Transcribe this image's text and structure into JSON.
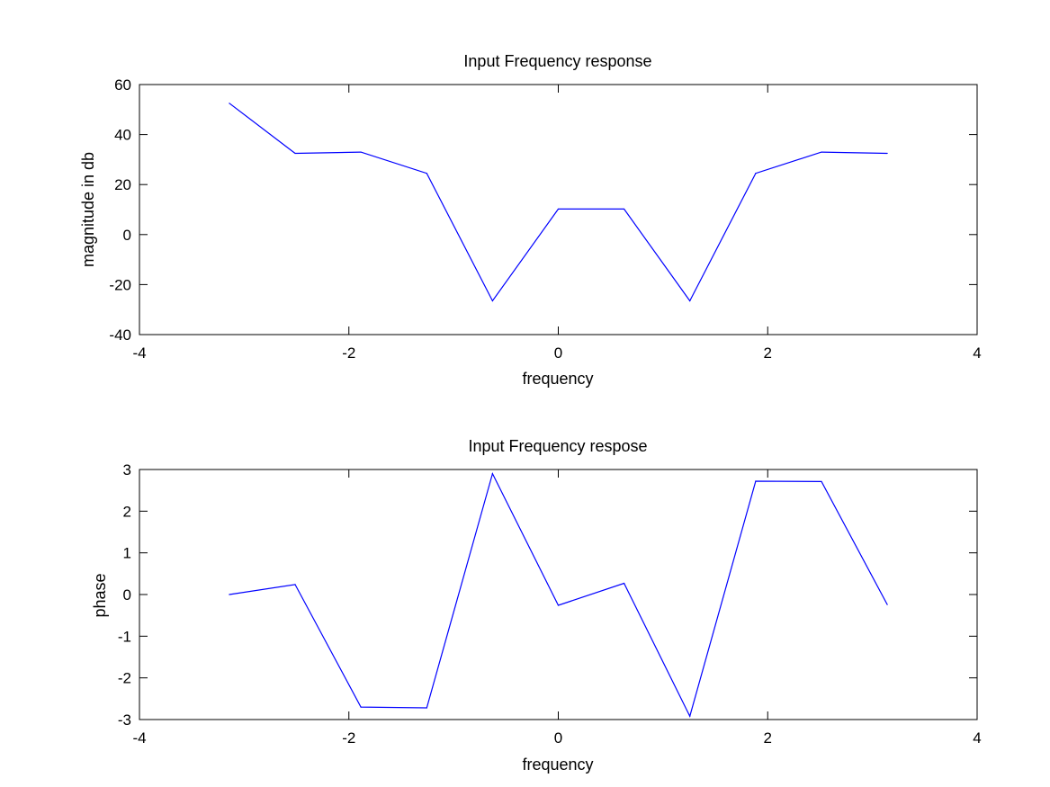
{
  "chart_data": [
    {
      "type": "line",
      "title": "Input Frequency response",
      "xlabel": "frequency",
      "ylabel": "magnitude in db",
      "xlim": [
        -4,
        4
      ],
      "ylim": [
        -40,
        60
      ],
      "xticks": [
        "-4",
        "-2",
        "0",
        "2",
        "4"
      ],
      "yticks": [
        "-40",
        "-20",
        "0",
        "20",
        "40",
        "60"
      ],
      "grid": false,
      "color": "#0000ff",
      "x": [
        -3.1416,
        -2.5133,
        -1.885,
        -1.2566,
        -0.6283,
        0.0,
        0.6283,
        1.2566,
        1.885,
        2.5133,
        3.1416
      ],
      "values": [
        52.5,
        32.5,
        33.0,
        24.5,
        -26.5,
        10.2,
        10.2,
        -26.5,
        24.5,
        33.0,
        32.5
      ]
    },
    {
      "type": "line",
      "title": "Input Frequency respose",
      "xlabel": "frequency",
      "ylabel": "phase",
      "xlim": [
        -4,
        4
      ],
      "ylim": [
        -3,
        3
      ],
      "xticks": [
        "-4",
        "-2",
        "0",
        "2",
        "4"
      ],
      "yticks": [
        "-3",
        "-2",
        "-1",
        "0",
        "1",
        "2",
        "3"
      ],
      "grid": false,
      "color": "#0000ff",
      "x": [
        -3.1416,
        -2.5133,
        -1.885,
        -1.2566,
        -0.6283,
        0.0,
        0.6283,
        1.2566,
        1.885,
        2.5133,
        3.1416
      ],
      "values": [
        0.0,
        0.24,
        -2.7,
        -2.72,
        2.9,
        -0.26,
        0.27,
        -2.92,
        2.72,
        2.71,
        -0.24
      ]
    }
  ]
}
